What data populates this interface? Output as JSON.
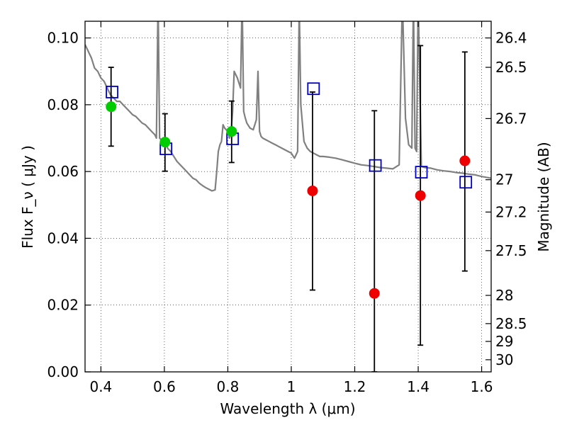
{
  "chart_data": {
    "type": "scatter",
    "title": "",
    "xlabel": "Wavelength  λ (μm)",
    "ylabel": "Flux  F_ν  ( μJy )",
    "ylabel_right": "Magnitude (AB)",
    "xlim": [
      0.35,
      1.63
    ],
    "ylim": [
      0,
      0.105
    ],
    "grid": true,
    "x_ticks": [
      {
        "value": 0.4,
        "label": "0.4"
      },
      {
        "value": 0.6,
        "label": "0.6"
      },
      {
        "value": 0.8,
        "label": "0.8"
      },
      {
        "value": 1.0,
        "label": "1"
      },
      {
        "value": 1.2,
        "label": "1.2"
      },
      {
        "value": 1.4,
        "label": "1.4"
      },
      {
        "value": 1.6,
        "label": "1.6"
      }
    ],
    "y_ticks": [
      {
        "value": 0.0,
        "label": "0.00"
      },
      {
        "value": 0.02,
        "label": "0.02"
      },
      {
        "value": 0.04,
        "label": "0.04"
      },
      {
        "value": 0.06,
        "label": "0.06"
      },
      {
        "value": 0.08,
        "label": "0.08"
      },
      {
        "value": 0.1,
        "label": "0.10"
      }
    ],
    "mag_ticks": [
      {
        "value": 26.4,
        "label": "26.4"
      },
      {
        "value": 26.5,
        "label": "26.5"
      },
      {
        "value": 26.7,
        "label": "26.7"
      },
      {
        "value": 27.0,
        "label": "27"
      },
      {
        "value": 27.2,
        "label": "27.2"
      },
      {
        "value": 27.5,
        "label": "27.5"
      },
      {
        "value": 28.0,
        "label": "28"
      },
      {
        "value": 28.5,
        "label": "28.5"
      },
      {
        "value": 29.0,
        "label": "29"
      },
      {
        "value": 30.0,
        "label": "30"
      }
    ],
    "series": [
      {
        "kind": "template_spectrum",
        "color": "#808080",
        "x": [
          0.35,
          0.36,
          0.37,
          0.38,
          0.39,
          0.4,
          0.41,
          0.42,
          0.43,
          0.44,
          0.45,
          0.46,
          0.47,
          0.48,
          0.49,
          0.5,
          0.51,
          0.52,
          0.53,
          0.54,
          0.55,
          0.56,
          0.57,
          0.575,
          0.58,
          0.585,
          0.59,
          0.6,
          0.61,
          0.62,
          0.63,
          0.64,
          0.65,
          0.66,
          0.67,
          0.68,
          0.69,
          0.7,
          0.71,
          0.72,
          0.73,
          0.74,
          0.75,
          0.76,
          0.765,
          0.77,
          0.775,
          0.78,
          0.785,
          0.79,
          0.8,
          0.805,
          0.81,
          0.815,
          0.82,
          0.83,
          0.84,
          0.845,
          0.85,
          0.855,
          0.86,
          0.87,
          0.88,
          0.89,
          0.895,
          0.9,
          0.905,
          0.91,
          0.92,
          0.93,
          0.94,
          0.95,
          0.96,
          0.97,
          0.98,
          0.99,
          1.0,
          1.01,
          1.02,
          1.025,
          1.03,
          1.04,
          1.05,
          1.06,
          1.07,
          1.08,
          1.09,
          1.1,
          1.12,
          1.14,
          1.16,
          1.18,
          1.2,
          1.22,
          1.24,
          1.26,
          1.28,
          1.3,
          1.32,
          1.34,
          1.35,
          1.36,
          1.37,
          1.38,
          1.385,
          1.39,
          1.395,
          1.4,
          1.41,
          1.42,
          1.44,
          1.46,
          1.48,
          1.5,
          1.52,
          1.54,
          1.56,
          1.58,
          1.6,
          1.63
        ],
        "y": [
          0.098,
          0.096,
          0.094,
          0.091,
          0.09,
          0.088,
          0.087,
          0.085,
          0.083,
          0.082,
          0.081,
          0.081,
          0.08,
          0.079,
          0.078,
          0.077,
          0.0765,
          0.0755,
          0.0745,
          0.074,
          0.073,
          0.072,
          0.071,
          0.07,
          0.112,
          0.07,
          0.0695,
          0.069,
          0.067,
          0.066,
          0.0645,
          0.063,
          0.062,
          0.061,
          0.06,
          0.059,
          0.058,
          0.0575,
          0.0565,
          0.0558,
          0.0552,
          0.0547,
          0.0542,
          0.0545,
          0.06,
          0.066,
          0.068,
          0.069,
          0.074,
          0.073,
          0.072,
          0.07,
          0.0715,
          0.078,
          0.09,
          0.088,
          0.085,
          0.112,
          0.078,
          0.076,
          0.0745,
          0.073,
          0.0725,
          0.0755,
          0.09,
          0.072,
          0.0705,
          0.07,
          0.0695,
          0.069,
          0.0685,
          0.068,
          0.0675,
          0.067,
          0.0665,
          0.066,
          0.0655,
          0.064,
          0.066,
          0.11,
          0.08,
          0.069,
          0.067,
          0.066,
          0.0655,
          0.065,
          0.0645,
          0.0645,
          0.0643,
          0.064,
          0.0635,
          0.063,
          0.0625,
          0.062,
          0.0618,
          0.0615,
          0.0612,
          0.061,
          0.0608,
          0.062,
          0.112,
          0.076,
          0.068,
          0.067,
          0.112,
          0.067,
          0.066,
          0.112,
          0.0615,
          0.0612,
          0.061,
          0.0605,
          0.0602,
          0.06,
          0.0597,
          0.0595,
          0.0592,
          0.059,
          0.0585,
          0.058
        ]
      },
      {
        "kind": "model_fluxes",
        "marker": "open-square",
        "color": "#0000cc",
        "x": [
          0.435,
          0.605,
          0.815,
          1.07,
          1.265,
          1.41,
          1.55
        ],
        "y": [
          0.0838,
          0.0668,
          0.0698,
          0.0848,
          0.0618,
          0.0598,
          0.0568
        ]
      },
      {
        "kind": "observed_detections",
        "marker": "filled-circle",
        "color": "#00cc00",
        "x": [
          0.432,
          0.602,
          0.812
        ],
        "y": [
          0.0794,
          0.0688,
          0.072
        ],
        "yerr_low": [
          0.0676,
          0.0601,
          0.0627
        ],
        "yerr_high": [
          0.0912,
          0.0773,
          0.0811
        ]
      },
      {
        "kind": "observed_nondetections",
        "marker": "filled-circle",
        "color": "#ee0000",
        "x": [
          1.067,
          1.262,
          1.407,
          1.547
        ],
        "y": [
          0.0542,
          0.0235,
          0.0528,
          0.0632
        ],
        "yerr_low": [
          0.0245,
          0.0,
          0.008,
          0.0302
        ],
        "yerr_high": [
          0.0838,
          0.0782,
          0.0977,
          0.0958
        ]
      }
    ]
  }
}
